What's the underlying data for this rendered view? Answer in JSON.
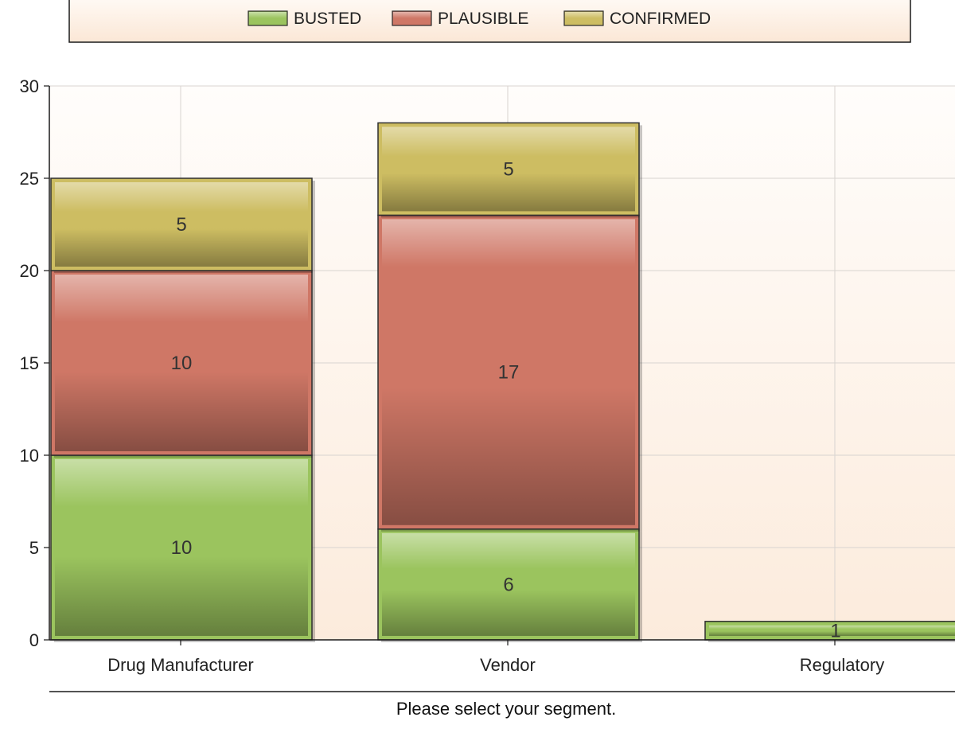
{
  "chart_data": {
    "type": "bar",
    "stacked": true,
    "categories": [
      "Drug Manufacturer",
      "Vendor",
      "Regulatory"
    ],
    "series": [
      {
        "name": "BUSTED",
        "values": [
          10,
          6,
          1
        ],
        "color": "#9bc45e"
      },
      {
        "name": "PLAUSIBLE",
        "values": [
          10,
          17,
          0
        ],
        "color": "#cf7766"
      },
      {
        "name": "CONFIRMED",
        "values": [
          5,
          5,
          0
        ],
        "color": "#cdbd62"
      }
    ],
    "ylim": [
      0,
      30
    ],
    "yticks": [
      0,
      5,
      10,
      15,
      20,
      25,
      30
    ],
    "grid": true,
    "legend_position": "top",
    "xlabel": "Please select your segment.",
    "ylabel": "",
    "title": ""
  }
}
